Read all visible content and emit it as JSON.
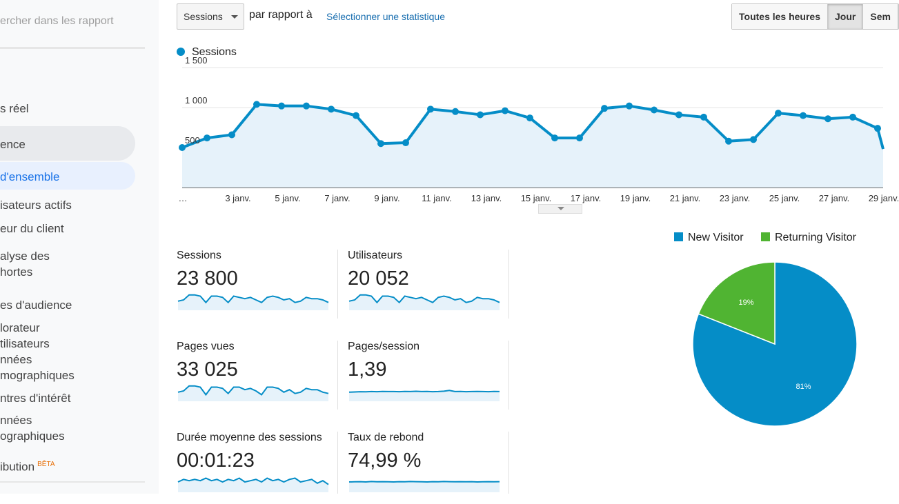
{
  "sidebar": {
    "search_placeholder": "ercher dans les rapport",
    "items": [
      {
        "label": "s réel"
      },
      {
        "label": "ence"
      },
      {
        "label": "d'ensemble"
      },
      {
        "label": "isateurs actifs"
      },
      {
        "label": "eur du client"
      },
      {
        "label": "alyse des\nhortes"
      },
      {
        "label": "es d'audience"
      },
      {
        "label": "lorateur\ntilisateurs"
      },
      {
        "label": "nnées\nmographiques"
      },
      {
        "label": "ntres d'intérêt"
      },
      {
        "label": "nnées\nographiques"
      },
      {
        "label": "ibution",
        "badge": "BÊTA"
      }
    ]
  },
  "toolbar": {
    "metric": "Sessions",
    "compare_label": "par rapport à",
    "select_stat": "Sélectionner une statistique",
    "granularity": [
      "Toutes les heures",
      "Jour",
      "Sem"
    ],
    "active_granularity": "Jour"
  },
  "colors": {
    "primary": "#058dc7",
    "secondary": "#50b432",
    "fill": "#e6f2fa"
  },
  "chart_data": [
    {
      "type": "line",
      "series": [
        {
          "name": "Sessions",
          "values": [
            500,
            620,
            660,
            1040,
            1020,
            1020,
            980,
            900,
            550,
            560,
            980,
            950,
            910,
            960,
            870,
            620,
            620,
            990,
            1020,
            970,
            910,
            880,
            580,
            600,
            930,
            900,
            860,
            880,
            740
          ]
        }
      ],
      "x_tick_labels": [
        "…",
        "3 janv.",
        "5 janv.",
        "7 janv.",
        "9 janv.",
        "11 janv.",
        "13 janv.",
        "15 janv.",
        "17 janv.",
        "19 janv.",
        "21 janv.",
        "23 janv.",
        "25 janv.",
        "27 janv.",
        "29 janv."
      ],
      "y_tick_labels": [
        "1 500",
        "1 000",
        "500"
      ],
      "ylim": [
        0,
        1500
      ],
      "legend": "top-left"
    },
    {
      "type": "pie",
      "categories": [
        "New Visitor",
        "Returning Visitor"
      ],
      "values": [
        81,
        19
      ],
      "labels": [
        "81%",
        "19%"
      ],
      "legend": "top"
    }
  ],
  "scorecards": [
    {
      "label": "Sessions",
      "value": "23 800",
      "spark": [
        5,
        6,
        10,
        10,
        9,
        4,
        9,
        9,
        8,
        4,
        9,
        8,
        7,
        8,
        6,
        4,
        8,
        9,
        8,
        6,
        7,
        4,
        5,
        8,
        7,
        7,
        6,
        4
      ]
    },
    {
      "label": "Utilisateurs",
      "value": "20 052",
      "spark": [
        5,
        6,
        10,
        10,
        9,
        4,
        9,
        9,
        8,
        4,
        9,
        8,
        7,
        8,
        6,
        4,
        8,
        9,
        8,
        6,
        7,
        4,
        5,
        8,
        7,
        7,
        6,
        4
      ]
    },
    {
      "label": "Pages vues",
      "value": "33 025",
      "spark": [
        5,
        6,
        10,
        10,
        9,
        3,
        9,
        9,
        8,
        4,
        9,
        9,
        7,
        8,
        6,
        3,
        9,
        9,
        8,
        5,
        7,
        4,
        5,
        8,
        7,
        7,
        5,
        4
      ]
    },
    {
      "label": "Pages/session",
      "value": "1,39",
      "spark": [
        5,
        5.2,
        5.4,
        5.3,
        5.5,
        5.4,
        5.6,
        5.5,
        5.5,
        5.4,
        5.6,
        5.5,
        5.7,
        5.5,
        5.6,
        5.4,
        5.5,
        5.8,
        6.4,
        5.5,
        5.6,
        5.4,
        5.5,
        5.6,
        5.5,
        5.4,
        5.6,
        5.5
      ]
    },
    {
      "label": "Durée moyenne des sessions",
      "value": "00:01:23",
      "spark": [
        6,
        8,
        7,
        8,
        7,
        9,
        7,
        8,
        6,
        8,
        7,
        9,
        6,
        7,
        8,
        6,
        9,
        7,
        8,
        6,
        8,
        9,
        6,
        7,
        8,
        5,
        7,
        4
      ]
    },
    {
      "label": "Taux de rebond",
      "value": "74,99 %",
      "spark": [
        6,
        6.1,
        6.2,
        6,
        6.3,
        6.1,
        6.2,
        6.1,
        6,
        6.2,
        6.1,
        6.3,
        6.2,
        6.1,
        6,
        6.2,
        6.1,
        6.3,
        6.2,
        6.1,
        6.2,
        6.1,
        6.2,
        6,
        6.1,
        6.2,
        6.1,
        6.2
      ]
    }
  ]
}
